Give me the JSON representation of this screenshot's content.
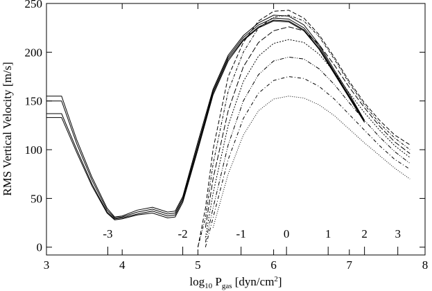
{
  "chart_data": {
    "type": "line",
    "ylabel": "RMS Vertical Velocity [m/s]",
    "xlabel_parts": [
      "log",
      "10",
      " P",
      "gas",
      " [dyn/cm",
      "2",
      "]"
    ],
    "x": [
      3.0,
      3.2,
      3.4,
      3.6,
      3.8,
      3.9,
      4.0,
      4.2,
      4.4,
      4.6,
      4.7,
      4.8,
      5.0,
      5.1,
      5.2,
      5.4,
      5.6,
      5.8,
      6.0,
      6.2,
      6.4,
      6.6,
      6.8,
      7.0,
      7.2,
      7.4,
      7.6,
      7.8
    ],
    "series": [
      {
        "color": "#000000",
        "dash": "none",
        "values": [
          155,
          155,
          110,
          72,
          40,
          31,
          32,
          38,
          41,
          36,
          37,
          52,
          108,
          135,
          162,
          197,
          217,
          230,
          238,
          237,
          228,
          208,
          182,
          157,
          130,
          null,
          null,
          null
        ]
      },
      {
        "color": "#000000",
        "dash": "none",
        "values": [
          150,
          150,
          106,
          69,
          38,
          30,
          31,
          36,
          39,
          34,
          35,
          50,
          105,
          132,
          160,
          195,
          215,
          228,
          235,
          234,
          225,
          206,
          180,
          155,
          130,
          null,
          null,
          null
        ]
      },
      {
        "color": "#000000",
        "dash": "none",
        "values": [
          137,
          137,
          100,
          65,
          36,
          29,
          30,
          34,
          37,
          32,
          33,
          48,
          102,
          130,
          158,
          193,
          213,
          226,
          233,
          232,
          223,
          204,
          179,
          154,
          129,
          null,
          null,
          null
        ]
      },
      {
        "color": "#000000",
        "dash": "none",
        "values": [
          133,
          133,
          97,
          63,
          35,
          28,
          29,
          33,
          35,
          30,
          31,
          46,
          100,
          128,
          156,
          191,
          212,
          225,
          232,
          231,
          222,
          203,
          178,
          153,
          128,
          null,
          null,
          null
        ]
      },
      {
        "color": "#000000",
        "dash": "6 3",
        "values": [
          null,
          null,
          null,
          null,
          null,
          null,
          null,
          null,
          null,
          null,
          null,
          null,
          0,
          40,
          100,
          175,
          210,
          232,
          242,
          243,
          235,
          218,
          195,
          170,
          148,
          130,
          115,
          105
        ]
      },
      {
        "color": "#000000",
        "dash": "4 2 1 2",
        "values": [
          null,
          null,
          null,
          null,
          null,
          null,
          null,
          null,
          null,
          null,
          null,
          null,
          0,
          30,
          85,
          160,
          200,
          225,
          236,
          238,
          232,
          216,
          193,
          168,
          146,
          127,
          112,
          100
        ]
      },
      {
        "color": "#000000",
        "dash": "8 3",
        "values": [
          null,
          null,
          null,
          null,
          null,
          null,
          null,
          null,
          null,
          null,
          null,
          null,
          null,
          20,
          70,
          140,
          185,
          210,
          222,
          226,
          222,
          208,
          187,
          164,
          143,
          124,
          108,
          96
        ]
      },
      {
        "color": "#000000",
        "dash": "2 2",
        "values": [
          null,
          null,
          null,
          null,
          null,
          null,
          null,
          null,
          null,
          null,
          null,
          null,
          null,
          10,
          55,
          125,
          170,
          196,
          209,
          213,
          210,
          198,
          180,
          158,
          138,
          120,
          104,
          92
        ]
      },
      {
        "color": "#000000",
        "dash": "6 2 1 2 1 2",
        "values": [
          null,
          null,
          null,
          null,
          null,
          null,
          null,
          null,
          null,
          null,
          null,
          null,
          null,
          5,
          40,
          105,
          150,
          177,
          191,
          195,
          193,
          183,
          167,
          148,
          130,
          113,
          98,
          86
        ]
      },
      {
        "color": "#000000",
        "dash": "5 3 1 3",
        "values": [
          null,
          null,
          null,
          null,
          null,
          null,
          null,
          null,
          null,
          null,
          null,
          null,
          null,
          0,
          30,
          90,
          132,
          158,
          171,
          175,
          173,
          165,
          152,
          136,
          120,
          104,
          90,
          80
        ]
      },
      {
        "color": "#000000",
        "dash": "1 2",
        "values": [
          null,
          null,
          null,
          null,
          null,
          null,
          null,
          null,
          null,
          null,
          null,
          null,
          null,
          null,
          20,
          75,
          115,
          140,
          152,
          155,
          153,
          146,
          135,
          121,
          107,
          94,
          81,
          70
        ]
      }
    ],
    "xlim": [
      3,
      8
    ],
    "ylim": [
      -8,
      250
    ],
    "xticks": [
      3,
      4,
      5,
      6,
      7,
      8
    ],
    "yticks": [
      0,
      50,
      100,
      150,
      200,
      250
    ],
    "x2ticks": [
      -3,
      -2,
      -1,
      0,
      1,
      2,
      3
    ],
    "x2ticks_at_x": [
      3.81,
      4.8,
      5.57,
      6.17,
      6.72,
      7.2,
      7.64
    ]
  }
}
